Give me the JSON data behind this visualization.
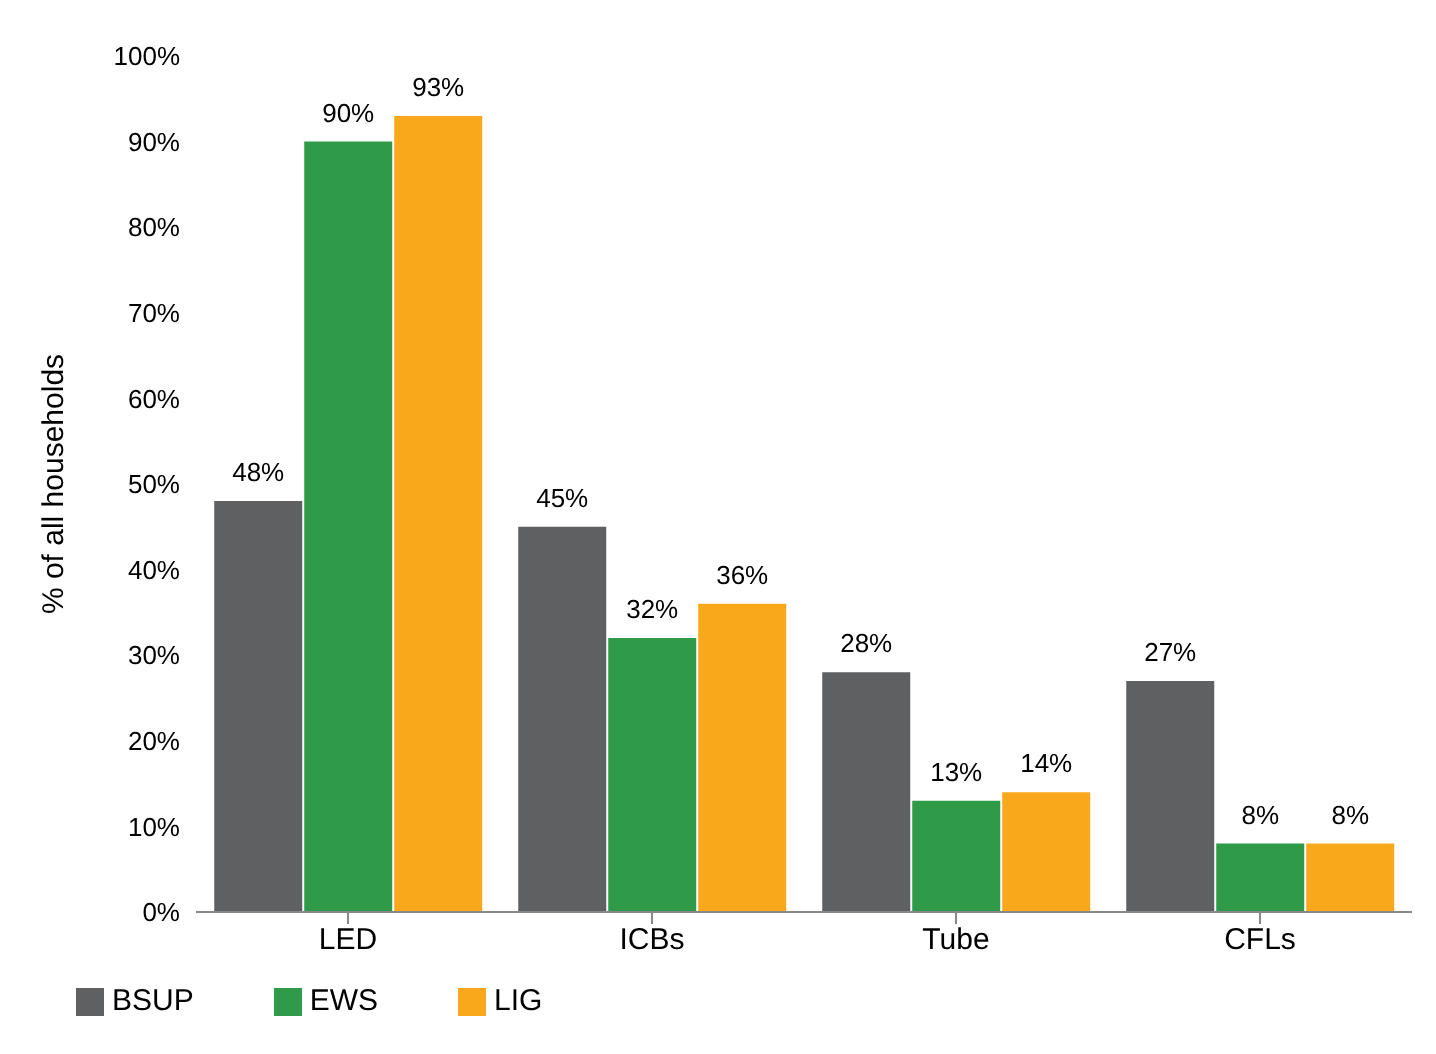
{
  "chart_data": {
    "type": "bar",
    "ylabel": "% of all households",
    "categories": [
      "LED",
      "ICBs",
      "Tube",
      "CFLs"
    ],
    "series": [
      {
        "name": "BSUP",
        "color": "#5f6062",
        "values": [
          48,
          45,
          28,
          27
        ],
        "value_labels": [
          "48%",
          "45%",
          "28%",
          "27%"
        ]
      },
      {
        "name": "EWS",
        "color": "#2f9a48",
        "values": [
          90,
          32,
          13,
          8
        ],
        "value_labels": [
          "90%",
          "32%",
          "13%",
          "8%"
        ]
      },
      {
        "name": "LIG",
        "color": "#f9a81b",
        "values": [
          93,
          36,
          14,
          8
        ],
        "value_labels": [
          "93%",
          "36%",
          "14%",
          "8%"
        ]
      }
    ],
    "ylim": [
      0,
      100
    ],
    "yticks": [
      {
        "value": 0,
        "label": "0%"
      },
      {
        "value": 10,
        "label": "10%"
      },
      {
        "value": 20,
        "label": "20%"
      },
      {
        "value": 30,
        "label": "30%"
      },
      {
        "value": 40,
        "label": "40%"
      },
      {
        "value": 50,
        "label": "50%"
      },
      {
        "value": 60,
        "label": "60%"
      },
      {
        "value": 70,
        "label": "70%"
      },
      {
        "value": 80,
        "label": "80%"
      },
      {
        "value": 90,
        "label": "90%"
      },
      {
        "value": 100,
        "label": "100%"
      }
    ],
    "grid": false,
    "legend": "bottom left"
  }
}
